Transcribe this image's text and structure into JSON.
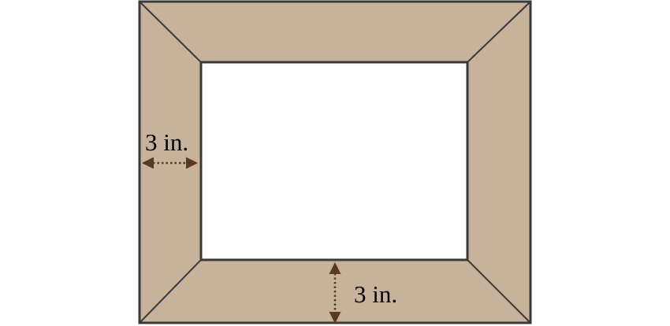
{
  "diagram": {
    "title": "",
    "frame": {
      "frame_color": "#c7b29b",
      "stroke_color": "#3a3a3a",
      "opening_color": "#ffffff"
    },
    "dimensions": {
      "side_width": {
        "label": "3 in.",
        "arrow_color": "#5a3a1e",
        "orientation": "horizontal"
      },
      "bottom_width": {
        "label": "3 in.",
        "arrow_color": "#5a3a1e",
        "orientation": "vertical"
      }
    }
  }
}
